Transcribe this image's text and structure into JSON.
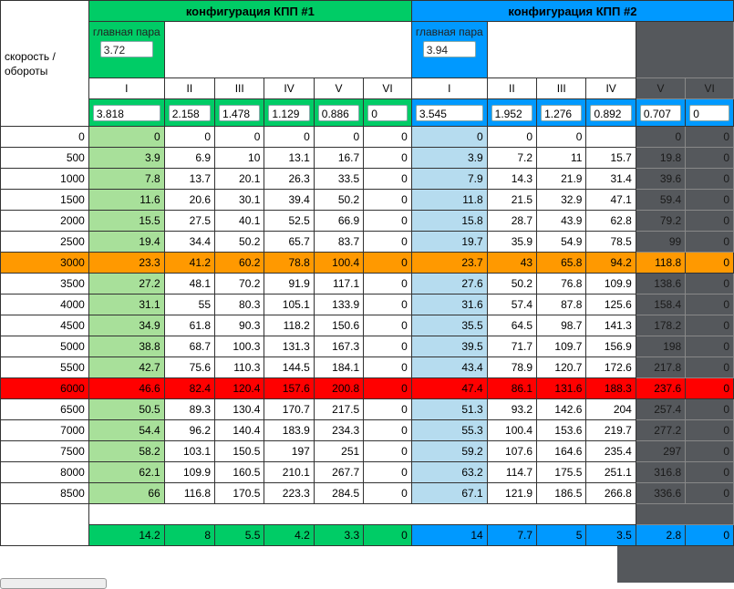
{
  "corner_label": "скорость / обороты",
  "configs": [
    {
      "title": "конфигурация КПП #1",
      "main_pair_label": "главная пара",
      "main_pair": "3.72",
      "color": "#00cc66",
      "light": "#a8e09a",
      "gears": [
        "I",
        "II",
        "III",
        "IV",
        "V",
        "VI"
      ],
      "ratios": [
        "3.818",
        "2.158",
        "1.478",
        "1.129",
        "0.886",
        "0"
      ],
      "totals": [
        "14.2",
        "8",
        "5.5",
        "4.2",
        "3.3",
        "0"
      ]
    },
    {
      "title": "конфигурация КПП #2",
      "main_pair_label": "главная пара",
      "main_pair": "3.94",
      "color": "#0099ff",
      "light": "#b6dcef",
      "gears": [
        "I",
        "II",
        "III",
        "IV",
        "V",
        "VI"
      ],
      "ratios": [
        "3.545",
        "1.952",
        "1.276",
        "0.892",
        "0.707",
        "0"
      ],
      "totals": [
        "14",
        "7.7",
        "5",
        "3.5",
        "2.8",
        "0"
      ]
    }
  ],
  "highlight": {
    "3000": "#ff9900",
    "6000": "#ff0000"
  },
  "rows": [
    {
      "rpm": "0",
      "c1": [
        "0",
        "0",
        "0",
        "0",
        "0",
        "0"
      ],
      "c2": [
        "0",
        "0",
        "0",
        "",
        "0",
        "0"
      ]
    },
    {
      "rpm": "500",
      "c1": [
        "3.9",
        "6.9",
        "10",
        "13.1",
        "16.7",
        "0"
      ],
      "c2": [
        "3.9",
        "7.2",
        "11",
        "15.7",
        "19.8",
        "0"
      ]
    },
    {
      "rpm": "1000",
      "c1": [
        "7.8",
        "13.7",
        "20.1",
        "26.3",
        "33.5",
        "0"
      ],
      "c2": [
        "7.9",
        "14.3",
        "21.9",
        "31.4",
        "39.6",
        "0"
      ]
    },
    {
      "rpm": "1500",
      "c1": [
        "11.6",
        "20.6",
        "30.1",
        "39.4",
        "50.2",
        "0"
      ],
      "c2": [
        "11.8",
        "21.5",
        "32.9",
        "47.1",
        "59.4",
        "0"
      ]
    },
    {
      "rpm": "2000",
      "c1": [
        "15.5",
        "27.5",
        "40.1",
        "52.5",
        "66.9",
        "0"
      ],
      "c2": [
        "15.8",
        "28.7",
        "43.9",
        "62.8",
        "79.2",
        "0"
      ]
    },
    {
      "rpm": "2500",
      "c1": [
        "19.4",
        "34.4",
        "50.2",
        "65.7",
        "83.7",
        "0"
      ],
      "c2": [
        "19.7",
        "35.9",
        "54.9",
        "78.5",
        "99",
        "0"
      ]
    },
    {
      "rpm": "3000",
      "c1": [
        "23.3",
        "41.2",
        "60.2",
        "78.8",
        "100.4",
        "0"
      ],
      "c2": [
        "23.7",
        "43",
        "65.8",
        "94.2",
        "118.8",
        "0"
      ]
    },
    {
      "rpm": "3500",
      "c1": [
        "27.2",
        "48.1",
        "70.2",
        "91.9",
        "117.1",
        "0"
      ],
      "c2": [
        "27.6",
        "50.2",
        "76.8",
        "109.9",
        "138.6",
        "0"
      ]
    },
    {
      "rpm": "4000",
      "c1": [
        "31.1",
        "55",
        "80.3",
        "105.1",
        "133.9",
        "0"
      ],
      "c2": [
        "31.6",
        "57.4",
        "87.8",
        "125.6",
        "158.4",
        "0"
      ]
    },
    {
      "rpm": "4500",
      "c1": [
        "34.9",
        "61.8",
        "90.3",
        "118.2",
        "150.6",
        "0"
      ],
      "c2": [
        "35.5",
        "64.5",
        "98.7",
        "141.3",
        "178.2",
        "0"
      ]
    },
    {
      "rpm": "5000",
      "c1": [
        "38.8",
        "68.7",
        "100.3",
        "131.3",
        "167.3",
        "0"
      ],
      "c2": [
        "39.5",
        "71.7",
        "109.7",
        "156.9",
        "198",
        "0"
      ]
    },
    {
      "rpm": "5500",
      "c1": [
        "42.7",
        "75.6",
        "110.3",
        "144.5",
        "184.1",
        "0"
      ],
      "c2": [
        "43.4",
        "78.9",
        "120.7",
        "172.6",
        "217.8",
        "0"
      ]
    },
    {
      "rpm": "6000",
      "c1": [
        "46.6",
        "82.4",
        "120.4",
        "157.6",
        "200.8",
        "0"
      ],
      "c2": [
        "47.4",
        "86.1",
        "131.6",
        "188.3",
        "237.6",
        "0"
      ]
    },
    {
      "rpm": "6500",
      "c1": [
        "50.5",
        "89.3",
        "130.4",
        "170.7",
        "217.5",
        "0"
      ],
      "c2": [
        "51.3",
        "93.2",
        "142.6",
        "204",
        "257.4",
        "0"
      ]
    },
    {
      "rpm": "7000",
      "c1": [
        "54.4",
        "96.2",
        "140.4",
        "183.9",
        "234.3",
        "0"
      ],
      "c2": [
        "55.3",
        "100.4",
        "153.6",
        "219.7",
        "277.2",
        "0"
      ]
    },
    {
      "rpm": "7500",
      "c1": [
        "58.2",
        "103.1",
        "150.5",
        "197",
        "251",
        "0"
      ],
      "c2": [
        "59.2",
        "107.6",
        "164.6",
        "235.4",
        "297",
        "0"
      ]
    },
    {
      "rpm": "8000",
      "c1": [
        "62.1",
        "109.9",
        "160.5",
        "210.1",
        "267.7",
        "0"
      ],
      "c2": [
        "63.2",
        "114.7",
        "175.5",
        "251.1",
        "316.8",
        "0"
      ]
    },
    {
      "rpm": "8500",
      "c1": [
        "66",
        "116.8",
        "170.5",
        "223.3",
        "284.5",
        "0"
      ],
      "c2": [
        "67.1",
        "121.9",
        "186.5",
        "266.8",
        "336.6",
        "0"
      ]
    }
  ]
}
